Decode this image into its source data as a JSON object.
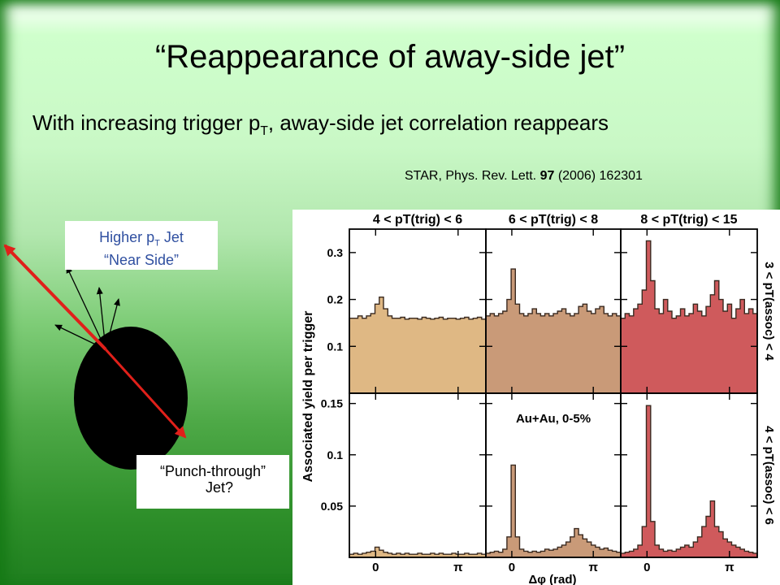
{
  "title": "“Reappearance of away-side jet”",
  "subtitle": {
    "pre": "With increasing trigger p",
    "sub": "T",
    "post": ", away-side jet correlation reappears"
  },
  "reference": {
    "pre": "STAR, Phys. Rev. Lett. ",
    "volume": "97",
    "post": " (2006) 162301"
  },
  "near_label": {
    "line1_pre": "Higher p",
    "line1_sub": "T",
    "line1_post": " Jet",
    "line2": "“Near Side”"
  },
  "punch_label": {
    "line1": "“Punch-through”",
    "line2": "Jet?"
  },
  "colors": {
    "panel1": "#dfb884",
    "panel2": "#c99a78",
    "panel3": "#cf5a5c",
    "arrow": "#e0201a"
  },
  "chart_data": {
    "type": "area",
    "ylabel": "Associated yield per trigger",
    "xlabel": "Δφ (rad)",
    "x_ticks": [
      "0",
      "π"
    ],
    "columns": [
      "4 < pT(trig) < 6",
      "6 < pT(trig) < 8",
      "8 < pT(trig) < 15"
    ],
    "rows": [
      "3 < pT(assoc) < 4",
      "4 < pT(assoc) < 6"
    ],
    "annotation": "Au+Au, 0-5%",
    "x_range": [
      -1.0,
      4.2
    ],
    "panels": [
      {
        "row": 0,
        "col": 0,
        "ylim": [
          0,
          0.35
        ],
        "yticks": [
          0.1,
          0.2,
          0.3
        ],
        "values": [
          0.16,
          0.16,
          0.165,
          0.16,
          0.165,
          0.17,
          0.19,
          0.205,
          0.18,
          0.165,
          0.16,
          0.16,
          0.162,
          0.158,
          0.16,
          0.16,
          0.158,
          0.162,
          0.16,
          0.158,
          0.16,
          0.162,
          0.158,
          0.16,
          0.16,
          0.158,
          0.16,
          0.162,
          0.158,
          0.16,
          0.162,
          0.158
        ]
      },
      {
        "row": 0,
        "col": 1,
        "ylim": [
          0,
          0.35
        ],
        "yticks": [
          0.1,
          0.2,
          0.3
        ],
        "values": [
          0.165,
          0.17,
          0.165,
          0.17,
          0.175,
          0.2,
          0.265,
          0.19,
          0.17,
          0.165,
          0.17,
          0.18,
          0.17,
          0.165,
          0.17,
          0.165,
          0.17,
          0.175,
          0.18,
          0.17,
          0.165,
          0.17,
          0.185,
          0.19,
          0.175,
          0.17,
          0.18,
          0.185,
          0.17,
          0.165,
          0.17,
          0.165
        ]
      },
      {
        "row": 0,
        "col": 2,
        "ylim": [
          0,
          0.35
        ],
        "yticks": [
          0.1,
          0.2,
          0.3
        ],
        "values": [
          0.16,
          0.17,
          0.165,
          0.18,
          0.19,
          0.22,
          0.325,
          0.24,
          0.18,
          0.17,
          0.2,
          0.175,
          0.16,
          0.165,
          0.18,
          0.165,
          0.17,
          0.19,
          0.175,
          0.165,
          0.185,
          0.21,
          0.24,
          0.2,
          0.175,
          0.19,
          0.16,
          0.18,
          0.2,
          0.17,
          0.18,
          0.17
        ]
      },
      {
        "row": 1,
        "col": 0,
        "ylim": [
          0,
          0.16
        ],
        "yticks": [
          0.05,
          0.1,
          0.15
        ],
        "values": [
          0.003,
          0.004,
          0.003,
          0.004,
          0.005,
          0.006,
          0.01,
          0.007,
          0.005,
          0.004,
          0.003,
          0.004,
          0.003,
          0.004,
          0.003,
          0.003,
          0.004,
          0.003,
          0.003,
          0.004,
          0.003,
          0.004,
          0.003,
          0.003,
          0.004,
          0.003,
          0.003,
          0.004,
          0.003,
          0.003,
          0.004,
          0.003
        ]
      },
      {
        "row": 1,
        "col": 1,
        "ylim": [
          0,
          0.16
        ],
        "yticks": [
          0.05,
          0.1,
          0.15
        ],
        "values": [
          0.004,
          0.005,
          0.006,
          0.005,
          0.008,
          0.02,
          0.09,
          0.02,
          0.008,
          0.006,
          0.005,
          0.006,
          0.005,
          0.006,
          0.008,
          0.007,
          0.008,
          0.01,
          0.012,
          0.015,
          0.02,
          0.028,
          0.022,
          0.018,
          0.015,
          0.012,
          0.01,
          0.008,
          0.009,
          0.007,
          0.006,
          0.005
        ]
      },
      {
        "row": 1,
        "col": 2,
        "ylim": [
          0,
          0.16
        ],
        "yticks": [
          0.05,
          0.1,
          0.15
        ],
        "values": [
          0.004,
          0.005,
          0.006,
          0.008,
          0.012,
          0.03,
          0.148,
          0.035,
          0.012,
          0.008,
          0.006,
          0.007,
          0.006,
          0.008,
          0.01,
          0.012,
          0.01,
          0.015,
          0.02,
          0.03,
          0.04,
          0.055,
          0.03,
          0.025,
          0.018,
          0.015,
          0.012,
          0.01,
          0.008,
          0.006,
          0.005,
          0.004
        ]
      }
    ]
  }
}
